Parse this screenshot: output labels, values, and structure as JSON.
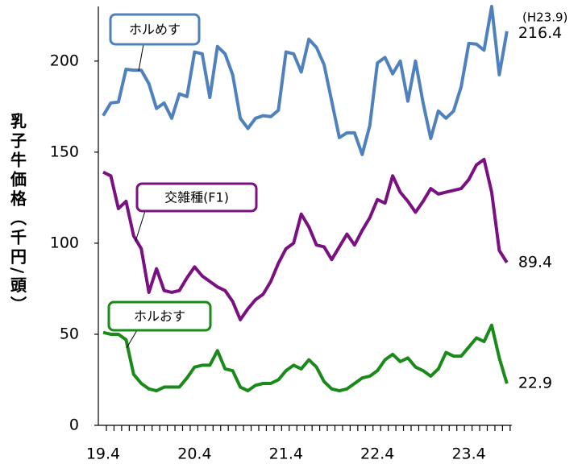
{
  "chart_data": {
    "type": "line",
    "y_label": "乳子牛価格（千円/頭）",
    "annotation": "(H23.9)",
    "categories": [
      "19.4",
      null,
      null,
      null,
      null,
      null,
      null,
      null,
      null,
      null,
      null,
      null,
      "20.4",
      null,
      null,
      null,
      null,
      null,
      null,
      null,
      null,
      null,
      null,
      null,
      "21.4",
      null,
      null,
      null,
      null,
      null,
      null,
      null,
      null,
      null,
      null,
      null,
      "22.4",
      null,
      null,
      null,
      null,
      null,
      null,
      null,
      null,
      null,
      null,
      null,
      "23.4",
      null,
      null,
      null,
      null,
      null
    ],
    "ylim": [
      0,
      230
    ],
    "yticks": [
      0,
      50,
      100,
      150,
      200
    ],
    "grid": false,
    "series": [
      {
        "name": "ホルめす",
        "color": "#4f81bd",
        "values": [
          170,
          177,
          177.5,
          195.5,
          195,
          195,
          187.6,
          174,
          177,
          168.6,
          182,
          180.5,
          205,
          204,
          180,
          208,
          204,
          192.5,
          168.6,
          163,
          168.6,
          170,
          169.5,
          173,
          205,
          204,
          194,
          212,
          207.5,
          198,
          178,
          158,
          160.6,
          160.6,
          148.7,
          164.6,
          199,
          202,
          193,
          200,
          178,
          200,
          177,
          157.5,
          172.6,
          168.6,
          172.6,
          186,
          209.7,
          209.3,
          206,
          230,
          192.5,
          216.4
        ]
      },
      {
        "name": "交雑種(F1)",
        "color": "#7b1080",
        "values": [
          139,
          137,
          119,
          123,
          104,
          97,
          73,
          86,
          74,
          73,
          74,
          81,
          87,
          82,
          79,
          76,
          74,
          68,
          58,
          64,
          69,
          72,
          79,
          89,
          97,
          100,
          116,
          109,
          99,
          98,
          91,
          98,
          105,
          99,
          107,
          114,
          124,
          122,
          137,
          128,
          123,
          117,
          123,
          130,
          127,
          128,
          129,
          130,
          135,
          143,
          146,
          128,
          96,
          89.4
        ]
      },
      {
        "name": "ホルおす",
        "color": "#1a8a1a",
        "values": [
          51,
          50,
          50,
          47,
          28,
          23,
          20,
          19,
          21,
          21,
          21,
          26,
          32,
          33,
          33,
          41,
          31,
          30,
          21,
          19,
          22,
          23,
          23,
          25,
          30,
          33,
          31,
          36,
          32,
          24,
          20,
          19,
          20,
          23,
          26,
          27,
          30,
          36,
          39,
          35,
          37,
          32,
          30,
          27,
          31,
          40,
          38,
          38,
          43,
          48,
          46,
          55,
          37,
          22.9
        ]
      }
    ]
  }
}
